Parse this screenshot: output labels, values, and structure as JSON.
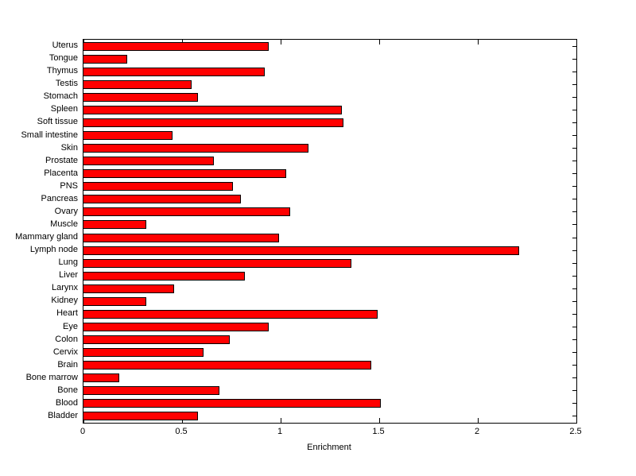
{
  "chart_data": {
    "type": "bar",
    "orientation": "horizontal",
    "title": "",
    "xlabel": "Enrichment",
    "ylabel": "",
    "xlim": [
      0,
      2.5
    ],
    "xticks": [
      0,
      0.5,
      1,
      1.5,
      2,
      2.5
    ],
    "xtick_labels": [
      "0",
      "0.5",
      "1",
      "1.5",
      "2",
      "2.5"
    ],
    "grid": false,
    "legend": "none",
    "bar_color": "#ff0000",
    "bar_edge_color": "#000000",
    "categories": [
      "Uterus",
      "Tongue",
      "Thymus",
      "Testis",
      "Stomach",
      "Spleen",
      "Soft tissue",
      "Small intestine",
      "Skin",
      "Prostate",
      "Placenta",
      "PNS",
      "Pancreas",
      "Ovary",
      "Muscle",
      "Mammary gland",
      "Lymph node",
      "Lung",
      "Liver",
      "Larynx",
      "Kidney",
      "Heart",
      "Eye",
      "Colon",
      "Cervix",
      "Brain",
      "Bone marrow",
      "Bone",
      "Blood",
      "Bladder"
    ],
    "values": [
      0.94,
      0.22,
      0.92,
      0.55,
      0.58,
      1.31,
      1.32,
      0.45,
      1.14,
      0.66,
      1.03,
      0.76,
      0.8,
      1.05,
      0.32,
      0.99,
      2.21,
      1.36,
      0.82,
      0.46,
      0.32,
      1.49,
      0.94,
      0.74,
      0.61,
      1.46,
      0.18,
      0.69,
      1.51,
      0.58
    ]
  }
}
